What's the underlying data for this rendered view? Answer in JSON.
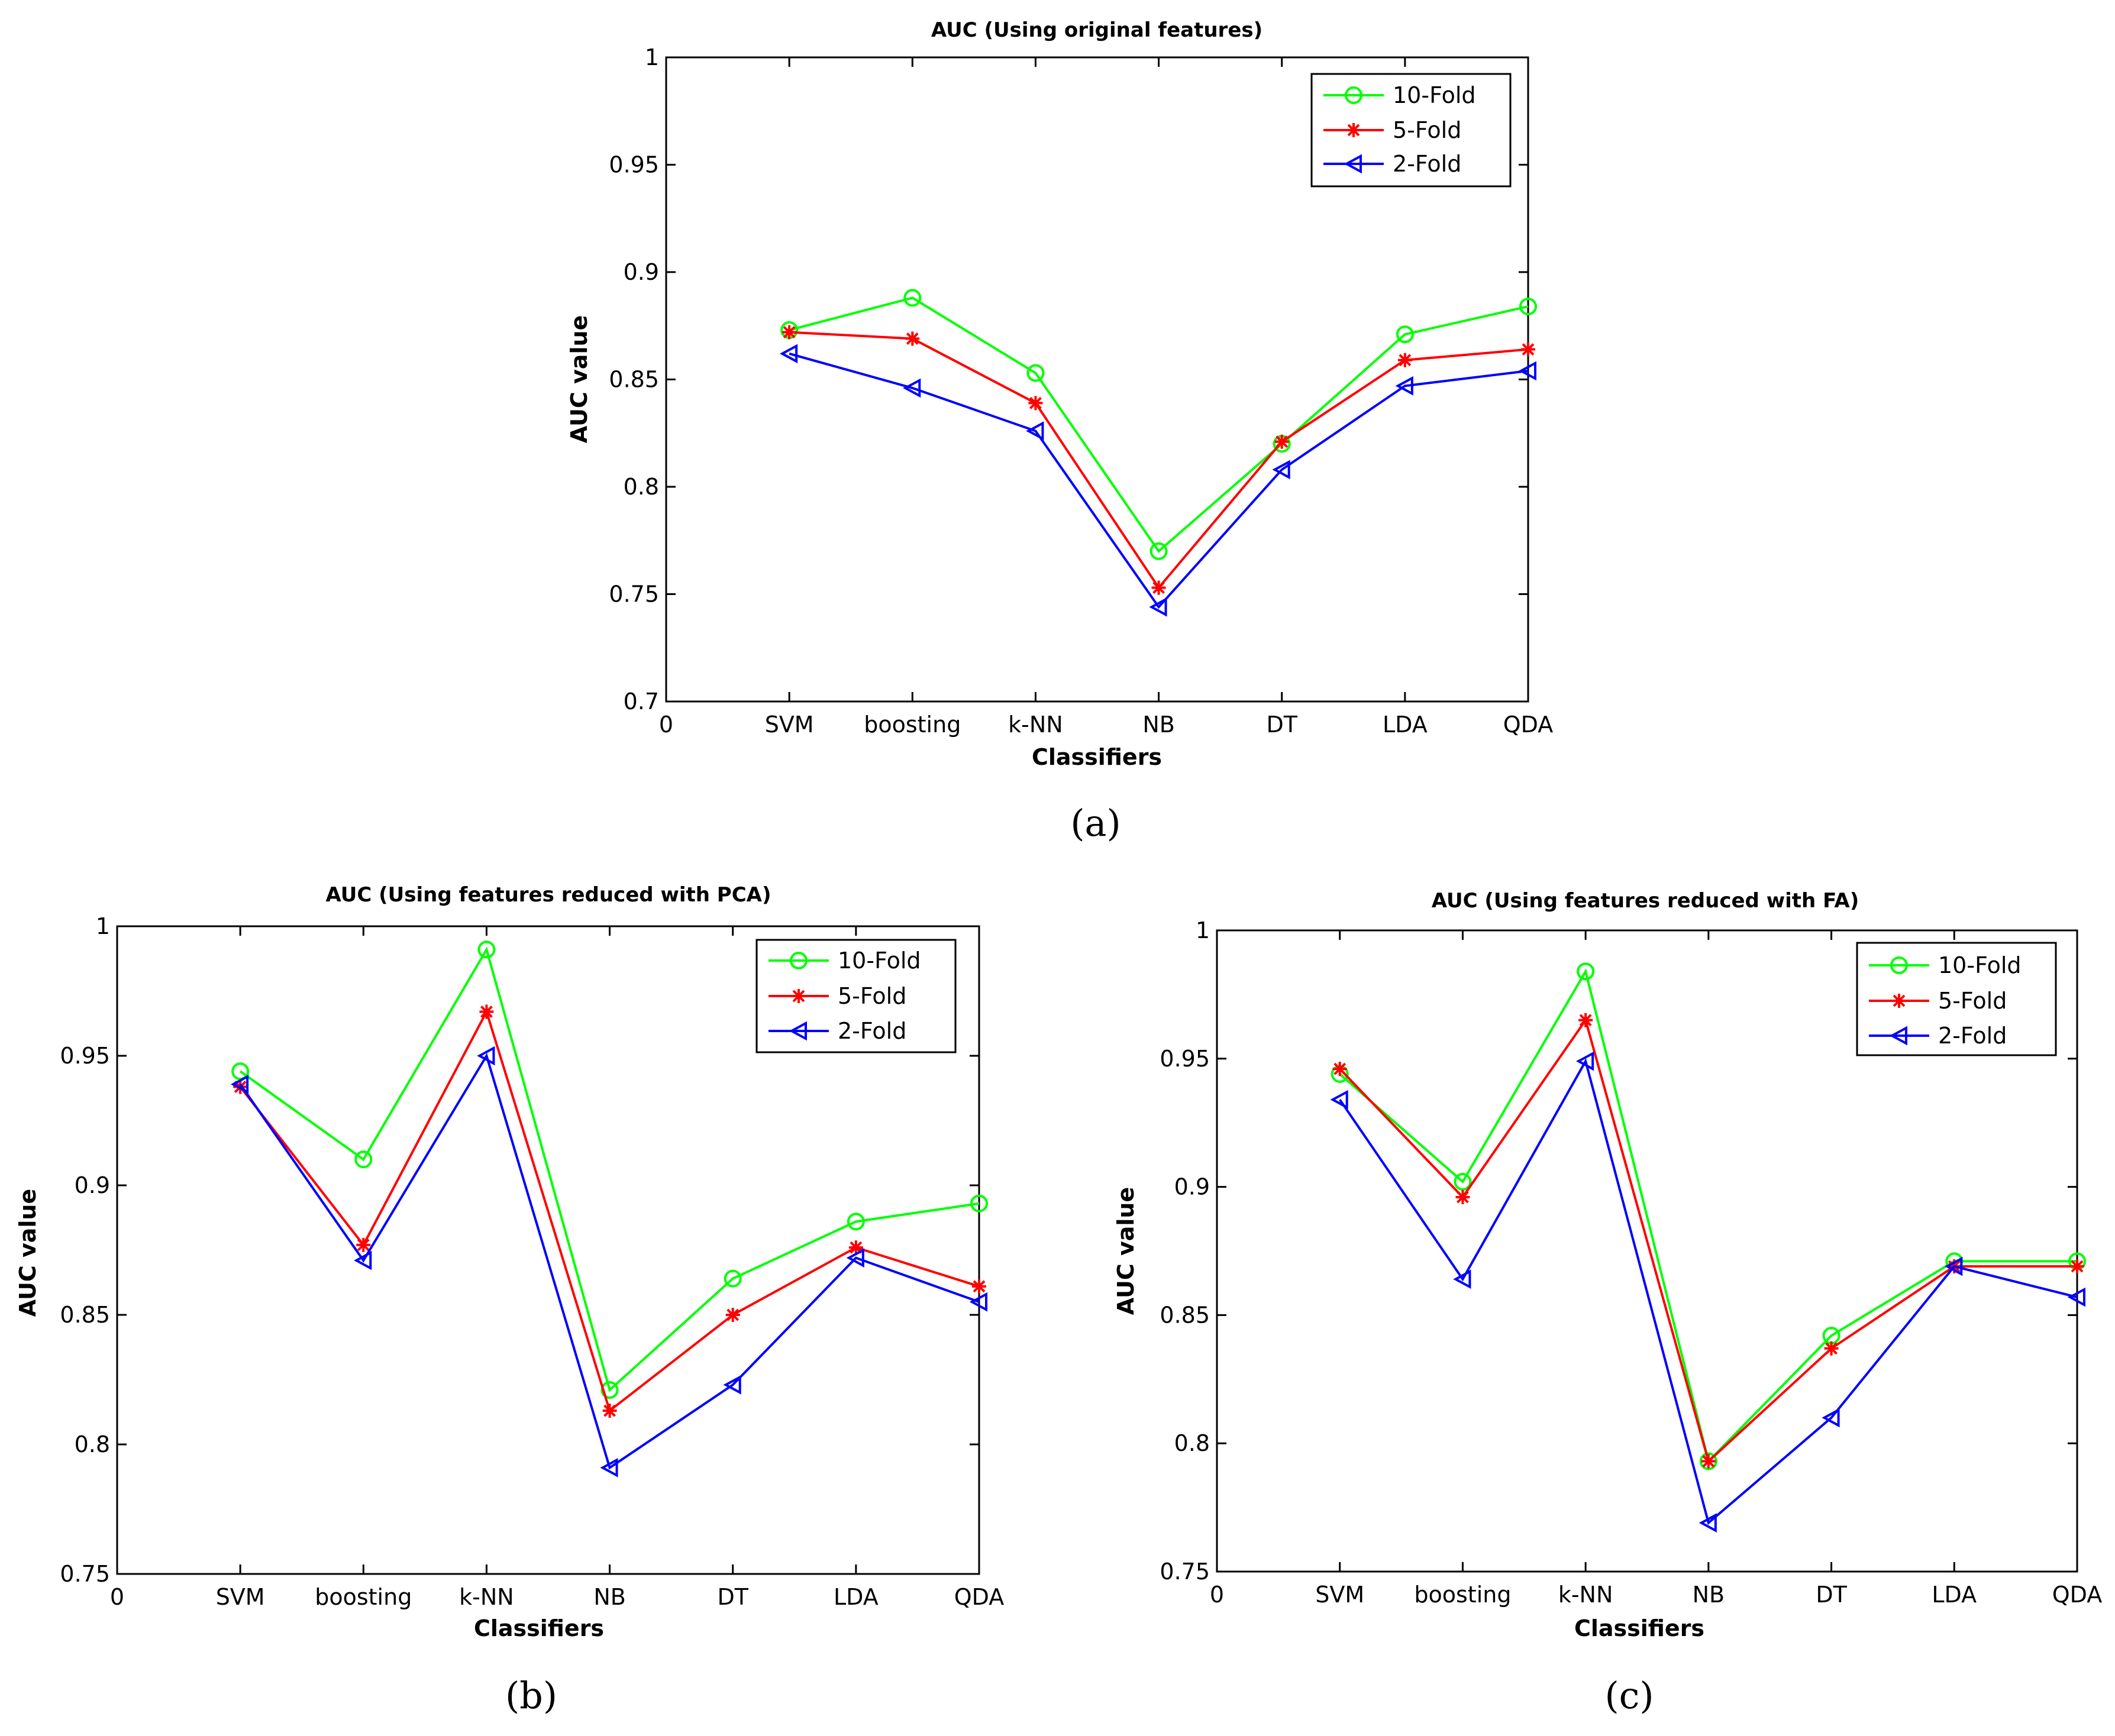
{
  "series_style": {
    "10-Fold": {
      "color": "#00ff00",
      "marker": "circle"
    },
    "5-Fold": {
      "color": "#ff0000",
      "marker": "star"
    },
    "2-Fold": {
      "color": "#0000ff",
      "marker": "triangle-left"
    }
  },
  "chart_data": [
    {
      "type": "line",
      "caption": "(a)",
      "title": "AUC (Using original features)",
      "xlabel": "Classifiers",
      "ylabel": "AUC value",
      "x_ticks": [
        "0",
        "SVM",
        "boosting",
        "k-NN",
        "NB",
        "DT",
        "LDA",
        "QDA"
      ],
      "categories": [
        "SVM",
        "boosting",
        "k-NN",
        "NB",
        "DT",
        "LDA",
        "QDA"
      ],
      "xlim": [
        0,
        7
      ],
      "ylim": [
        0.7,
        1
      ],
      "y_ticks": [
        "0.7",
        "0.75",
        "0.8",
        "0.85",
        "0.9",
        "0.95",
        "1"
      ],
      "legend": "top-right",
      "grid": false,
      "series": [
        {
          "name": "10-Fold",
          "values": [
            0.873,
            0.888,
            0.853,
            0.77,
            0.82,
            0.871,
            0.884
          ]
        },
        {
          "name": "5-Fold",
          "values": [
            0.872,
            0.869,
            0.839,
            0.753,
            0.821,
            0.859,
            0.864
          ]
        },
        {
          "name": "2-Fold",
          "values": [
            0.862,
            0.846,
            0.826,
            0.744,
            0.808,
            0.847,
            0.854
          ]
        }
      ]
    },
    {
      "type": "line",
      "caption": "(b)",
      "title": "AUC (Using features reduced with PCA)",
      "xlabel": "Classifiers",
      "ylabel": "AUC value",
      "x_ticks": [
        "0",
        "SVM",
        "boosting",
        "k-NN",
        "NB",
        "DT",
        "LDA",
        "QDA"
      ],
      "categories": [
        "SVM",
        "boosting",
        "k-NN",
        "NB",
        "DT",
        "LDA",
        "QDA"
      ],
      "xlim": [
        0,
        7
      ],
      "ylim": [
        0.75,
        1
      ],
      "y_ticks": [
        "0.75",
        "0.8",
        "0.85",
        "0.9",
        "0.95",
        "1"
      ],
      "legend": "top-right",
      "grid": false,
      "series": [
        {
          "name": "10-Fold",
          "values": [
            0.944,
            0.91,
            0.991,
            0.821,
            0.864,
            0.886,
            0.893
          ]
        },
        {
          "name": "5-Fold",
          "values": [
            0.938,
            0.877,
            0.967,
            0.813,
            0.85,
            0.876,
            0.861
          ]
        },
        {
          "name": "2-Fold",
          "values": [
            0.939,
            0.871,
            0.95,
            0.791,
            0.823,
            0.872,
            0.855
          ]
        }
      ]
    },
    {
      "type": "line",
      "caption": "(c)",
      "title": "AUC (Using features reduced with FA)",
      "xlabel": "Classifiers",
      "ylabel": "AUC value",
      "x_ticks": [
        "0",
        "SVM",
        "boosting",
        "k-NN",
        "NB",
        "DT",
        "LDA",
        "QDA"
      ],
      "categories": [
        "SVM",
        "boosting",
        "k-NN",
        "NB",
        "DT",
        "LDA",
        "QDA"
      ],
      "xlim": [
        0,
        7
      ],
      "ylim": [
        0.75,
        1
      ],
      "y_ticks": [
        "0.75",
        "0.8",
        "0.85",
        "0.9",
        "0.95",
        "1"
      ],
      "legend": "top-right",
      "grid": false,
      "series": [
        {
          "name": "10-Fold",
          "values": [
            0.944,
            0.902,
            0.984,
            0.793,
            0.842,
            0.871,
            0.871
          ]
        },
        {
          "name": "5-Fold",
          "values": [
            0.946,
            0.896,
            0.965,
            0.793,
            0.837,
            0.869,
            0.869
          ]
        },
        {
          "name": "2-Fold",
          "values": [
            0.934,
            0.864,
            0.949,
            0.769,
            0.81,
            0.869,
            0.857
          ]
        }
      ]
    }
  ]
}
